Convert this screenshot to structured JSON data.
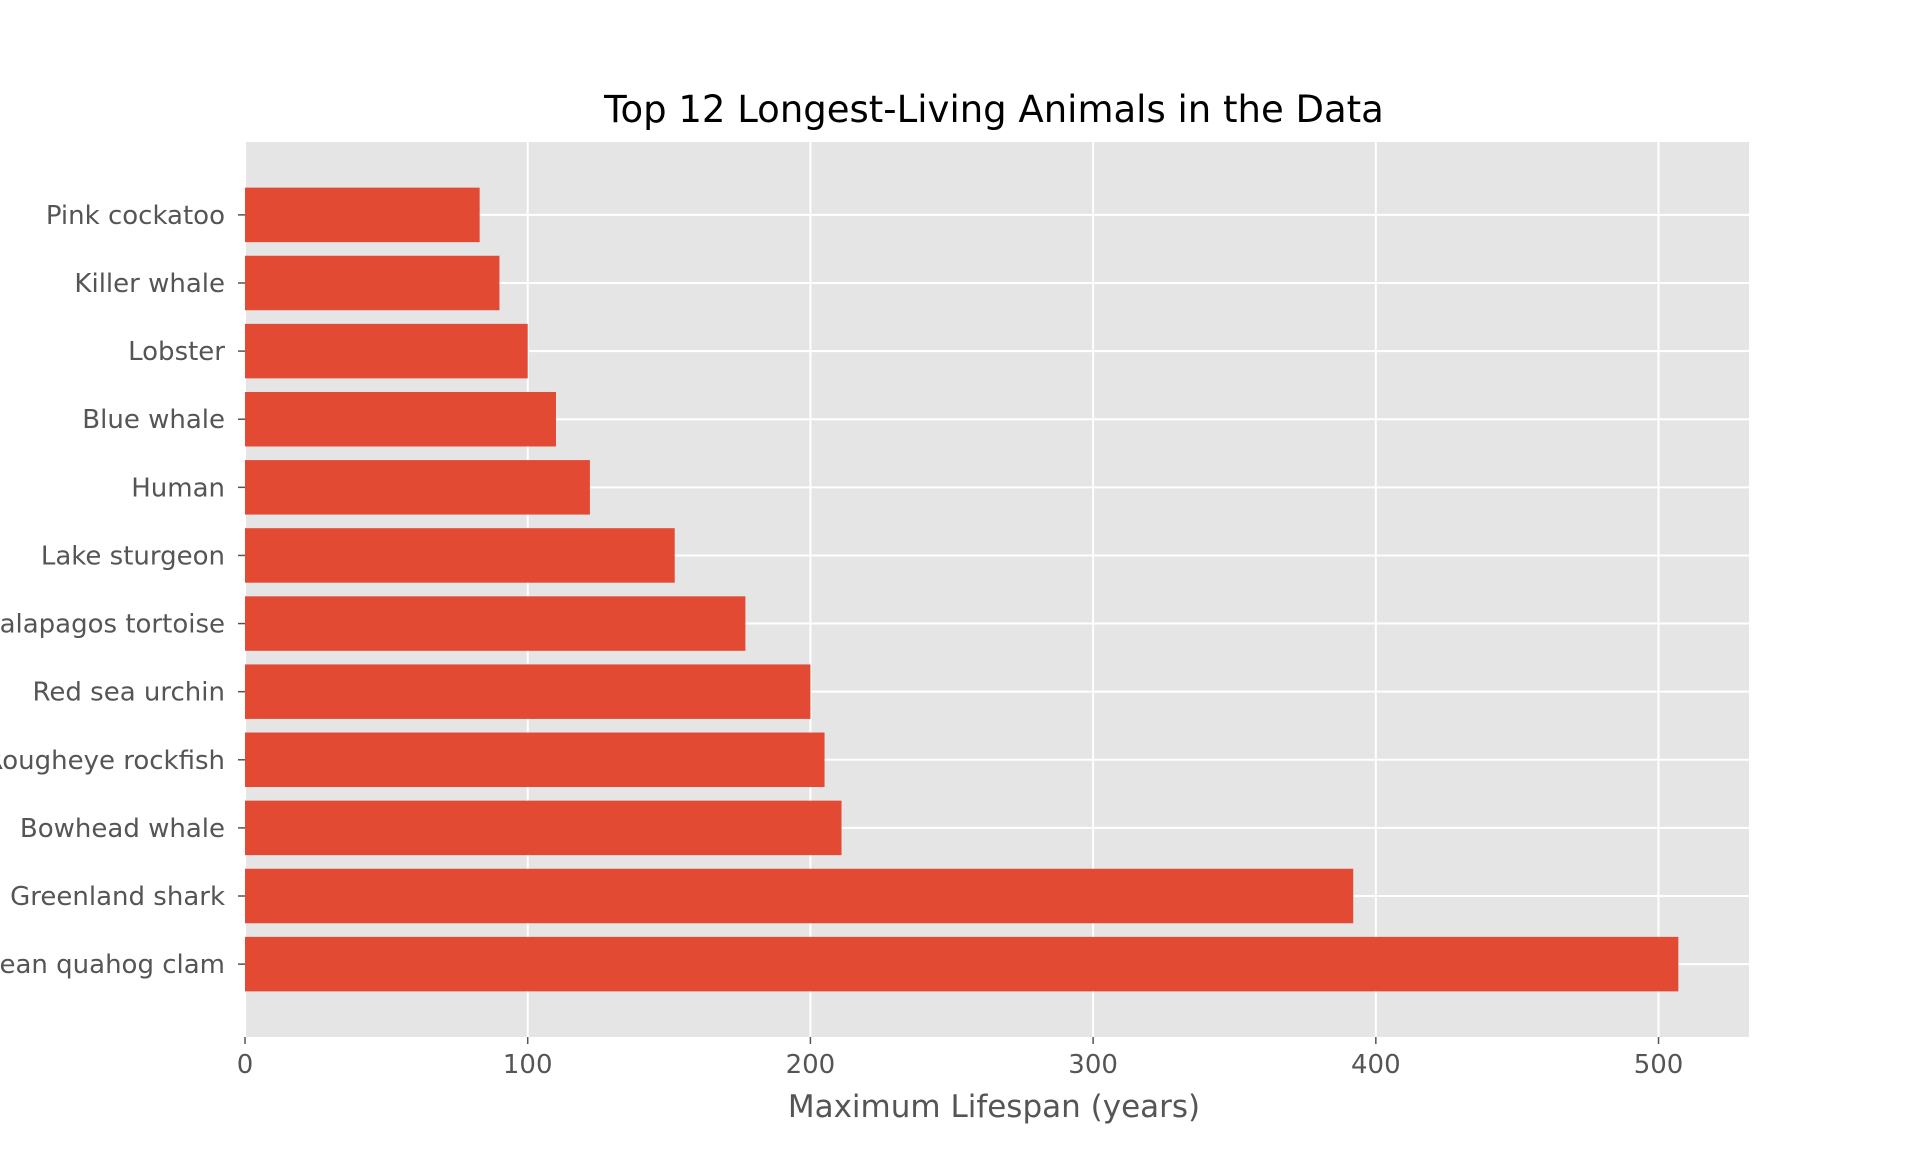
{
  "chart_data": {
    "type": "bar",
    "orientation": "horizontal",
    "title": "Top 12 Longest-Living Animals in the Data",
    "xlabel": "Maximum Lifespan (years)",
    "ylabel": "",
    "categories": [
      "Ocean quahog clam",
      "Greenland shark",
      "Bowhead whale",
      "Rougheye rockfish",
      "Red sea urchin",
      "Galapagos tortoise",
      "Lake sturgeon",
      "Human",
      "Blue whale",
      "Lobster",
      "Killer whale",
      "Pink cockatoo"
    ],
    "values": [
      507,
      392,
      211,
      205,
      200,
      177,
      152,
      122,
      110,
      100,
      90,
      83
    ],
    "xlim": [
      0,
      532
    ],
    "xticks": [
      0,
      100,
      200,
      300,
      400,
      500
    ],
    "grid": true,
    "legend": "none",
    "colors": {
      "bar": "#E24A33",
      "plot_background": "#E5E5E5",
      "grid": "#FFFFFF",
      "tick_text": "#555555",
      "title_text": "#000000"
    }
  }
}
